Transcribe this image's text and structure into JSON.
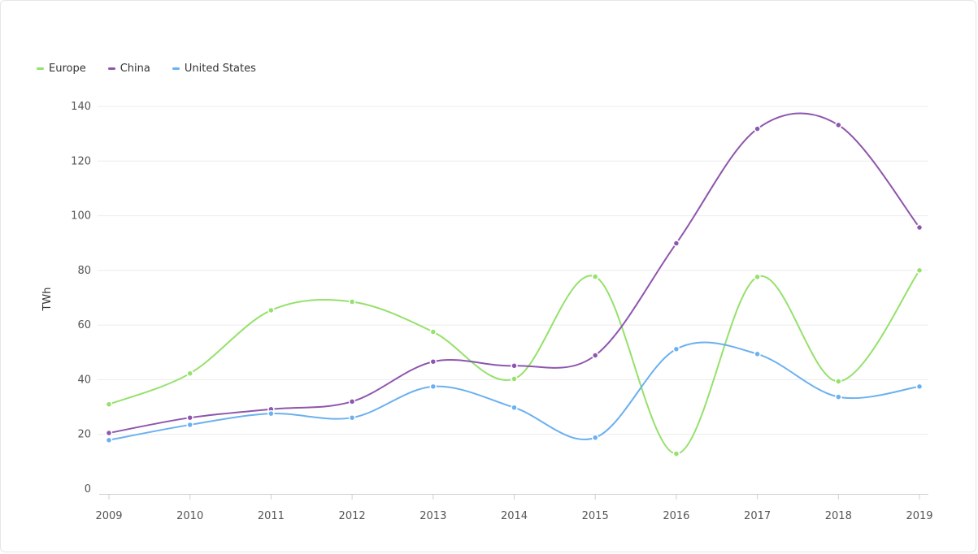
{
  "chart_data": {
    "type": "line",
    "smooth": true,
    "x": [
      "2009",
      "2010",
      "2011",
      "2012",
      "2013",
      "2014",
      "2015",
      "2016",
      "2017",
      "2018",
      "2019"
    ],
    "ylabel": "TWh",
    "ylim": [
      0,
      140
    ],
    "yticks": [
      0,
      20,
      40,
      60,
      80,
      100,
      120,
      140
    ],
    "grid": true,
    "legend_position": "top-left",
    "series": [
      {
        "name": "Europe",
        "color": "#95e16b",
        "values": [
          31,
          42.3,
          65.4,
          68.5,
          57.5,
          40.3,
          77.7,
          12.9,
          77.6,
          39.4,
          80
        ]
      },
      {
        "name": "China",
        "color": "#8e56ad",
        "values": [
          20.5,
          26.1,
          29.2,
          32,
          46.6,
          45.1,
          48.9,
          89.9,
          131.8,
          133.2,
          95.7
        ]
      },
      {
        "name": "United States",
        "color": "#6bb0f0",
        "values": [
          17.9,
          23.5,
          27.6,
          26.1,
          37.5,
          29.8,
          18.8,
          51.2,
          49.4,
          33.7,
          37.5
        ]
      }
    ]
  }
}
